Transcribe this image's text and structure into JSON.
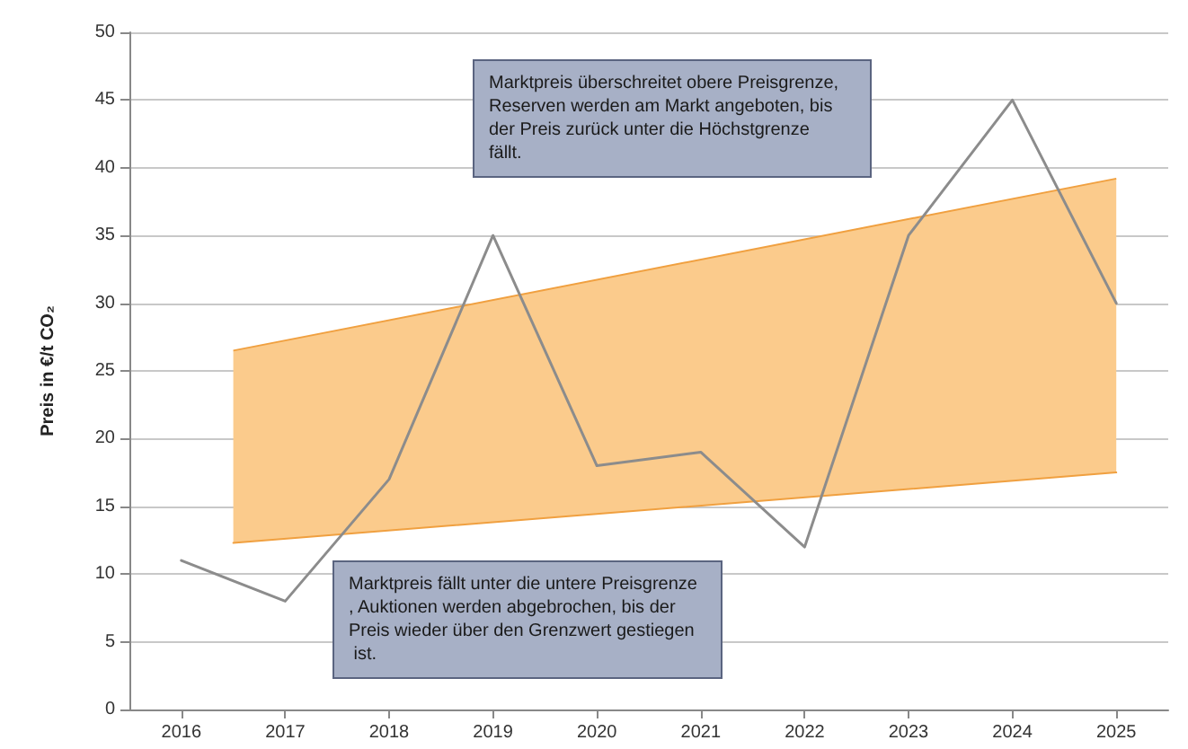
{
  "chart_data": {
    "type": "line",
    "ylabel": "Preis in €/t CO₂",
    "xlim": [
      2015.5,
      2025.5
    ],
    "xticks": [
      2016,
      2017,
      2018,
      2019,
      2020,
      2021,
      2022,
      2023,
      2024,
      2025
    ],
    "ylim": [
      0,
      50
    ],
    "yticks": [
      0,
      5,
      10,
      15,
      20,
      25,
      30,
      35,
      40,
      45,
      50
    ],
    "grid": "y",
    "marker": "none",
    "line_style": "solid",
    "series": [
      {
        "type": "line",
        "color": "#f0a040",
        "x": [
          2016.5,
          2025
        ],
        "values": [
          12.3,
          17.5
        ]
      },
      {
        "type": "area",
        "color": "#fbcb8c",
        "x": [
          2016.5,
          2025
        ],
        "values": [
          26.5,
          39.2
        ]
      },
      {
        "type": "line",
        "color": "#8c8c8c",
        "x": [
          2016,
          2017,
          2018,
          2019,
          2020,
          2021,
          2022,
          2023,
          2024,
          2025
        ],
        "values": [
          11,
          8,
          17,
          35,
          18,
          19,
          12,
          35,
          45,
          30
        ]
      }
    ],
    "annotations": [
      "Marktpreis überschreitet obere Preisgrenze, Reserven werden am Markt angeboten, bis der Preis zurück unter die Höchstgrenze fällt.",
      "Marktpreis fällt unter die untere Preisgrenze, Auktionen werden abgebrochen, bis der Preis wieder über den Grenzwert gestiegen ist."
    ]
  }
}
